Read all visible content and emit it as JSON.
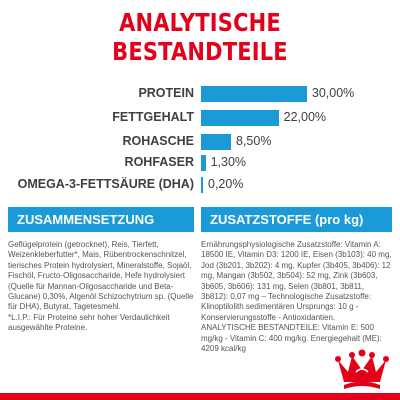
{
  "title": "ANALYTISCHE BESTANDTEILE",
  "nutrients": [
    {
      "label": "PROTEIN",
      "value": "30,00%",
      "percent": 30.0
    },
    {
      "label": "FETTGEHALT",
      "value": "22,00%",
      "percent": 22.0
    },
    {
      "label": "ROHASCHE",
      "value": "8,50%",
      "percent": 8.5
    },
    {
      "label": "ROHFASER",
      "value": "1,30%",
      "percent": 1.3
    },
    {
      "label": "OMEGA-3-FETTSÄURE (DHA)",
      "value": "0,20%",
      "percent": 0.2
    }
  ],
  "composition": {
    "heading": "ZUSAMMENSETZUNG",
    "paragraphs": [
      "Geflügelprotein (getrocknet), Reis, Tierfett, Weizenkleberfutter*, Mais, Rübentrockenschnitzel, tierisches Protein hydrolysiert, Mineralstoffe, Sojaöl, Fischöl, Fructo-Oligosaccharide, Hefe hydrolysiert (Quelle für Mannan-Oligosaccharide und Beta-Glucane) 0,30%, Algenöl Schizochytrium sp. (Quelle für DHA), Butyrat, Tagetesmehl.",
      "*L.I.P.: Für Proteine sehr hoher Verdaulichkeit ausgewählte Proteine."
    ]
  },
  "additives": {
    "heading": "ZUSATZSTOFFE (pro kg)",
    "paragraphs": [
      "Ernährungsphysiologische Zusatzstoffe: Vitamin A: 18500 IE, Vitamin D3: 1200 IE, Eisen (3b103): 40 mg, Jod (3b201, 3b202): 4 mg, Kupfer (3b405, 3b406): 12 mg, Mangan (3b502, 3b504): 52 mg, Zink (3b603, 3b605, 3b606): 131 mg, Selen (3b801, 3b811, 3b812): 0,07 mg – Technologische Zusatzstoffe: Klinoptilolith sedimentären Ursprungs: 10 g - Konservierungsstoffe - Antioxidantien.",
      "ANALYTISCHE BESTANDTEILE: Vitamin E: 500 mg/kg - Vitamin C: 400 mg/kg. Energiegehalt (ME): 4209 kcal/kg"
    ]
  },
  "colors": {
    "brand_red": "#e3001b",
    "bar_blue": "#1a9ad6",
    "text_dark": "#404040"
  },
  "logo_icon": "royal-canin-crown-logo"
}
